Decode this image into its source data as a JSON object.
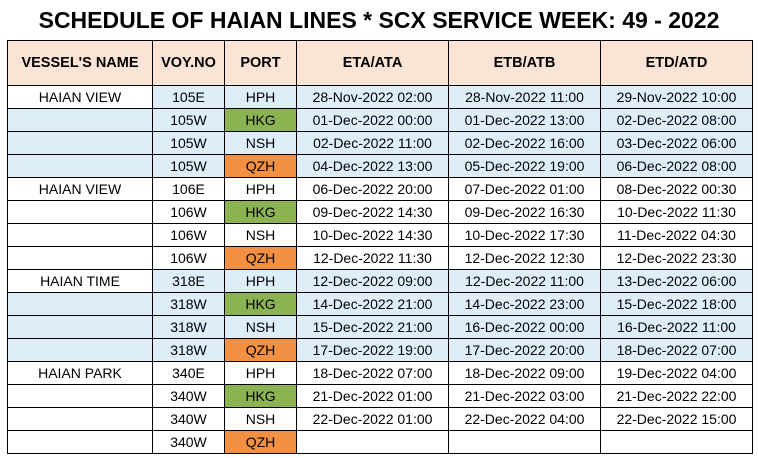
{
  "title": "SCHEDULE OF HAIAN LINES * SCX SERVICE WEEK: 49 - 2022",
  "headers": [
    "VESSEL'S NAME",
    "VOY.NO",
    "PORT",
    "ETA/ATA",
    "ETB/ATB",
    "ETD/ATD"
  ],
  "rows": [
    {
      "vessel": "HAIAN VIEW",
      "voy": "105E",
      "port": "HPH",
      "eta": "28-Nov-2022 02:00",
      "etb": "28-Nov-2022 11:00",
      "etd": "29-Nov-2022 10:00"
    },
    {
      "vessel": "",
      "voy": "105W",
      "port": "HKG",
      "eta": "01-Dec-2022 00:00",
      "etb": "01-Dec-2022 13:00",
      "etd": "02-Dec-2022 08:00"
    },
    {
      "vessel": "",
      "voy": "105W",
      "port": "NSH",
      "eta": "02-Dec-2022 11:00",
      "etb": "02-Dec-2022 16:00",
      "etd": "03-Dec-2022 06:00"
    },
    {
      "vessel": "",
      "voy": "105W",
      "port": "QZH",
      "eta": "04-Dec-2022 13:00",
      "etb": "05-Dec-2022 19:00",
      "etd": "06-Dec-2022 08:00"
    },
    {
      "vessel": "HAIAN VIEW",
      "voy": "106E",
      "port": "HPH",
      "eta": "06-Dec-2022 20:00",
      "etb": "07-Dec-2022 01:00",
      "etd": "08-Dec-2022 00:30"
    },
    {
      "vessel": "",
      "voy": "106W",
      "port": "HKG",
      "eta": "09-Dec-2022 14:30",
      "etb": "09-Dec-2022 16:30",
      "etd": "10-Dec-2022 11:30"
    },
    {
      "vessel": "",
      "voy": "106W",
      "port": "NSH",
      "eta": "10-Dec-2022 14:30",
      "etb": "10-Dec-2022 17:30",
      "etd": "11-Dec-2022 04:30"
    },
    {
      "vessel": "",
      "voy": "106W",
      "port": "QZH",
      "eta": "12-Dec-2022 11:30",
      "etb": "12-Dec-2022 12:30",
      "etd": "12-Dec-2022 23:30"
    },
    {
      "vessel": "HAIAN TIME",
      "voy": "318E",
      "port": "HPH",
      "eta": "12-Dec-2022 09:00",
      "etb": "12-Dec-2022 11:00",
      "etd": "13-Dec-2022 06:00"
    },
    {
      "vessel": "",
      "voy": "318W",
      "port": "HKG",
      "eta": "14-Dec-2022 21:00",
      "etb": "14-Dec-2022 23:00",
      "etd": "15-Dec-2022 18:00"
    },
    {
      "vessel": "",
      "voy": "318W",
      "port": "NSH",
      "eta": "15-Dec-2022 21:00",
      "etb": "16-Dec-2022 00:00",
      "etd": "16-Dec-2022 11:00"
    },
    {
      "vessel": "",
      "voy": "318W",
      "port": "QZH",
      "eta": "17-Dec-2022 19:00",
      "etb": "17-Dec-2022 20:00",
      "etd": "18-Dec-2022 07:00"
    },
    {
      "vessel": "HAIAN PARK",
      "voy": "340E",
      "port": "HPH",
      "eta": "18-Dec-2022 07:00",
      "etb": "18-Dec-2022 09:00",
      "etd": "19-Dec-2022 04:00"
    },
    {
      "vessel": "",
      "voy": "340W",
      "port": "HKG",
      "eta": "21-Dec-2022 01:00",
      "etb": "21-Dec-2022 03:00",
      "etd": "21-Dec-2022 22:00"
    },
    {
      "vessel": "",
      "voy": "340W",
      "port": "NSH",
      "eta": "22-Dec-2022 01:00",
      "etb": "22-Dec-2022 04:00",
      "etd": "22-Dec-2022 15:00"
    },
    {
      "vessel": "",
      "voy": "340W",
      "port": "QZH",
      "eta": "",
      "etb": "",
      "etd": ""
    }
  ],
  "colors": {
    "header_bg": "#fbe3d6",
    "row_blue": "#ddeef8",
    "row_white": "#ffffff",
    "hkg_green": "#8cb352",
    "qzh_orange": "#f29143"
  }
}
